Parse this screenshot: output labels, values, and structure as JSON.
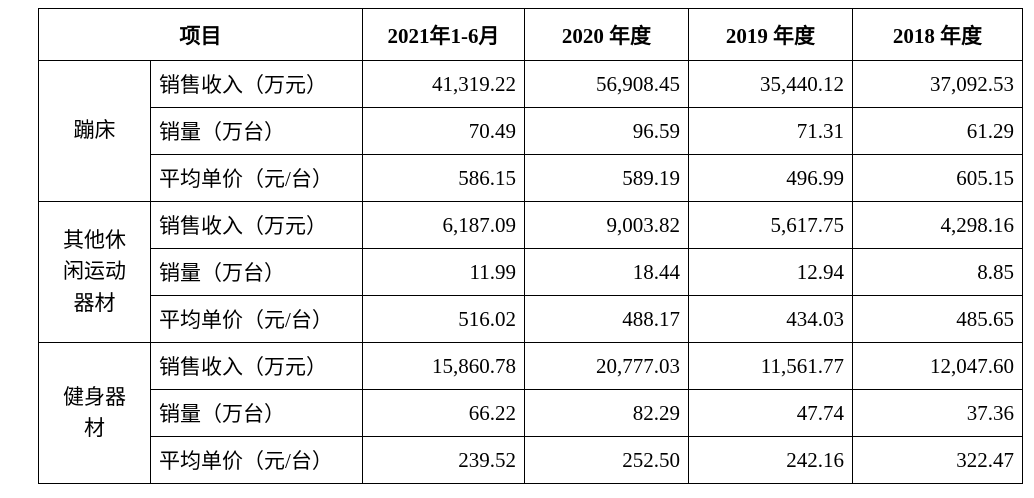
{
  "header": {
    "item": "项目",
    "years": [
      "2021年1-6月",
      "2020 年度",
      "2019 年度",
      "2018 年度"
    ]
  },
  "groups": [
    {
      "name": "蹦床",
      "rows": [
        {
          "label": "销售收入（万元）",
          "values": [
            "41,319.22",
            "56,908.45",
            "35,440.12",
            "37,092.53"
          ]
        },
        {
          "label": "销量（万台）",
          "values": [
            "70.49",
            "96.59",
            "71.31",
            "61.29"
          ]
        },
        {
          "label": "平均单价（元/台）",
          "values": [
            "586.15",
            "589.19",
            "496.99",
            "605.15"
          ]
        }
      ]
    },
    {
      "name": "其他休闲运动器材",
      "rows": [
        {
          "label": "销售收入（万元）",
          "values": [
            "6,187.09",
            "9,003.82",
            "5,617.75",
            "4,298.16"
          ]
        },
        {
          "label": "销量（万台）",
          "values": [
            "11.99",
            "18.44",
            "12.94",
            "8.85"
          ]
        },
        {
          "label": "平均单价（元/台）",
          "values": [
            "516.02",
            "488.17",
            "434.03",
            "485.65"
          ]
        }
      ]
    },
    {
      "name": "健身器材",
      "rows": [
        {
          "label": "销售收入（万元）",
          "values": [
            "15,860.78",
            "20,777.03",
            "11,561.77",
            "12,047.60"
          ]
        },
        {
          "label": "销量（万台）",
          "values": [
            "66.22",
            "82.29",
            "47.74",
            "37.36"
          ]
        },
        {
          "label": "平均单价（元/台）",
          "values": [
            "239.52",
            "252.50",
            "242.16",
            "322.47"
          ]
        }
      ]
    }
  ]
}
